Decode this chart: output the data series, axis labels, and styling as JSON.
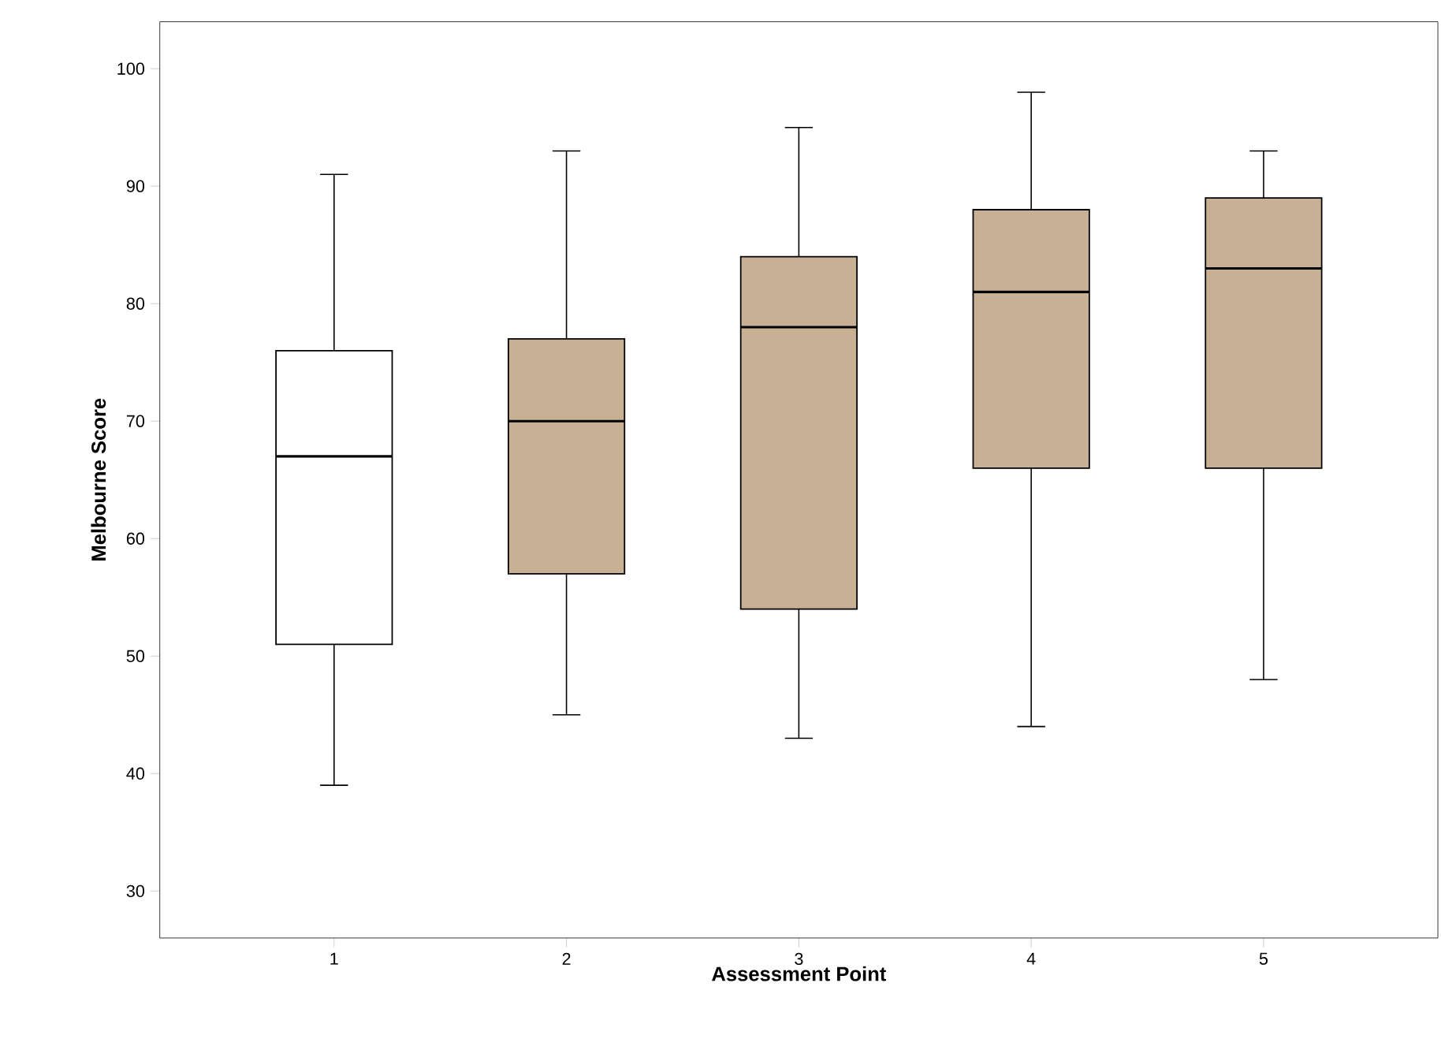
{
  "chart_data": {
    "type": "box",
    "xlabel": "Assessment Point",
    "ylabel": "Melbourne Score",
    "categories": [
      "1",
      "2",
      "3",
      "4",
      "5"
    ],
    "colors": [
      "#ffffff",
      "#c8b094",
      "#c8b094",
      "#c8b094",
      "#c8b094"
    ],
    "boxes": [
      {
        "low": 39,
        "q1": 51,
        "median": 67,
        "q3": 76,
        "high": 91
      },
      {
        "low": 45,
        "q1": 57,
        "median": 70,
        "q3": 77,
        "high": 93
      },
      {
        "low": 43,
        "q1": 54,
        "median": 78,
        "q3": 84,
        "high": 95
      },
      {
        "low": 44,
        "q1": 66,
        "median": 81,
        "q3": 88,
        "high": 98
      },
      {
        "low": 48,
        "q1": 66,
        "median": 83,
        "q3": 89,
        "high": 93
      }
    ],
    "ylim": [
      26,
      104
    ],
    "yticks": [
      30,
      40,
      50,
      60,
      70,
      80,
      90,
      100
    ],
    "grid": false
  }
}
